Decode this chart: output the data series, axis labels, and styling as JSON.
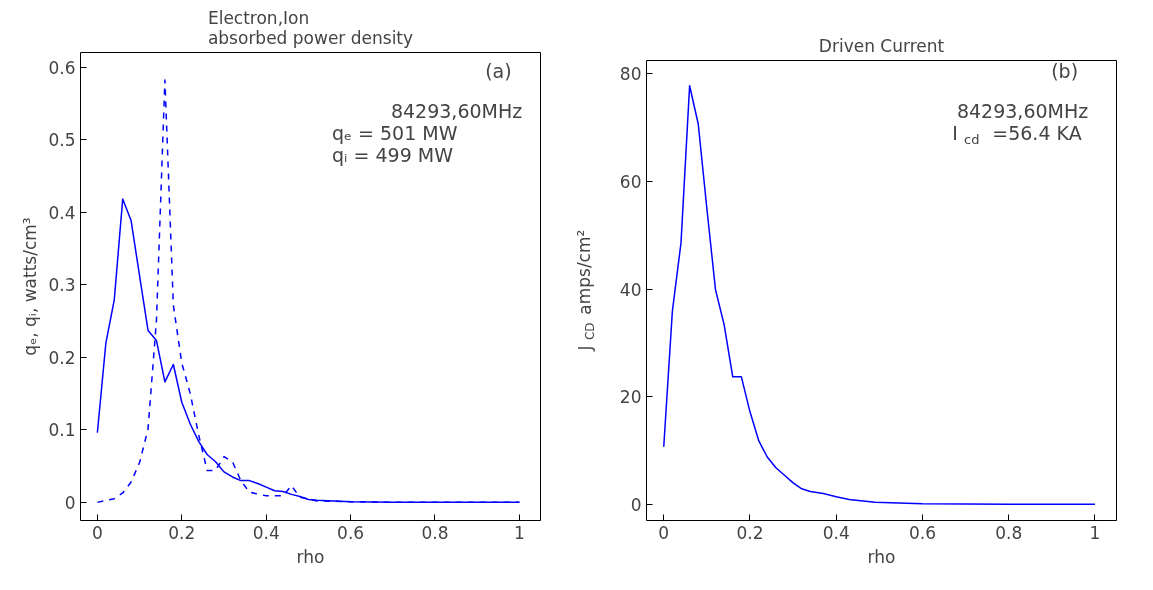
{
  "chart_data": [
    {
      "type": "line",
      "title": "Electron,Ion\nabsorbed power density",
      "xlabel": "rho",
      "ylabel": "qₑ, qᵢ, watts/cm³",
      "xlim": [
        -0.04,
        1.05
      ],
      "ylim": [
        -0.025,
        0.62
      ],
      "xticks": [
        0,
        0.2,
        0.4,
        0.6,
        0.8,
        1
      ],
      "yticks": [
        0,
        0.1,
        0.2,
        0.3,
        0.4,
        0.5,
        0.6
      ],
      "grid": false,
      "marker": "none",
      "annotations": [
        "(a)",
        "84293,60MHz",
        "qₑ  =  501    MW",
        "qᵢ  =  499    MW"
      ],
      "series": [
        {
          "color": "#0000ff",
          "line_style": "solid",
          "x": [
            0,
            0.02,
            0.04,
            0.06,
            0.08,
            0.1,
            0.12,
            0.14,
            0.16,
            0.18,
            0.2,
            0.22,
            0.24,
            0.26,
            0.28,
            0.3,
            0.32,
            0.34,
            0.36,
            0.38,
            0.4,
            0.42,
            0.44,
            0.46,
            0.48,
            0.5,
            0.52,
            0.6,
            0.7,
            0.8,
            0.9,
            1
          ],
          "values": [
            0.096,
            0.219,
            0.279,
            0.418,
            0.388,
            0.312,
            0.237,
            0.223,
            0.166,
            0.19,
            0.138,
            0.108,
            0.084,
            0.066,
            0.056,
            0.042,
            0.035,
            0.03,
            0.03,
            0.026,
            0.021,
            0.016,
            0.015,
            0.011,
            0.008,
            0.004,
            0.003,
            0.001,
            0,
            0,
            0,
            0
          ]
        },
        {
          "color": "#0000ff",
          "line_style": "dashed",
          "x": [
            0,
            0.04,
            0.06,
            0.08,
            0.1,
            0.12,
            0.14,
            0.16,
            0.18,
            0.2,
            0.22,
            0.24,
            0.26,
            0.28,
            0.3,
            0.32,
            0.34,
            0.36,
            0.4,
            0.44,
            0.46,
            0.48,
            0.52,
            0.6,
            0.7,
            0.8,
            0.9,
            1
          ],
          "values": [
            0,
            0.005,
            0.013,
            0.028,
            0.055,
            0.101,
            0.251,
            0.582,
            0.272,
            0.192,
            0.15,
            0.093,
            0.044,
            0.044,
            0.063,
            0.056,
            0.03,
            0.014,
            0.009,
            0.009,
            0.023,
            0.007,
            0.002,
            0.001,
            0,
            0,
            0,
            0
          ]
        }
      ]
    },
    {
      "type": "line",
      "title": "Driven Current",
      "xlabel": "rho",
      "ylabel": "J$_{CD}$ amps/cm²",
      "xlim": [
        -0.04,
        1.05
      ],
      "ylim": [
        -3,
        82.5
      ],
      "xticks": [
        0,
        0.2,
        0.4,
        0.6,
        0.8,
        1
      ],
      "yticks": [
        0,
        20,
        40,
        60,
        80
      ],
      "grid": false,
      "marker": "none",
      "annotations": [
        "(b)",
        "84293,60MHz",
        "I$_{cd}$ =56.4 KA"
      ],
      "series": [
        {
          "color": "#0000ff",
          "line_style": "solid",
          "x": [
            0,
            0.02,
            0.04,
            0.06,
            0.08,
            0.1,
            0.12,
            0.14,
            0.16,
            0.18,
            0.2,
            0.22,
            0.24,
            0.26,
            0.28,
            0.3,
            0.32,
            0.34,
            0.37,
            0.4,
            0.43,
            0.49,
            0.6,
            0.8,
            1
          ],
          "values": [
            10.7,
            35.9,
            48.6,
            77.8,
            70.7,
            55,
            39.9,
            33.4,
            23.7,
            23.7,
            17.2,
            11.9,
            8.8,
            6.8,
            5.4,
            4.0,
            2.9,
            2.4,
            2.0,
            1.4,
            0.9,
            0.4,
            0.1,
            0,
            0
          ]
        }
      ]
    }
  ]
}
